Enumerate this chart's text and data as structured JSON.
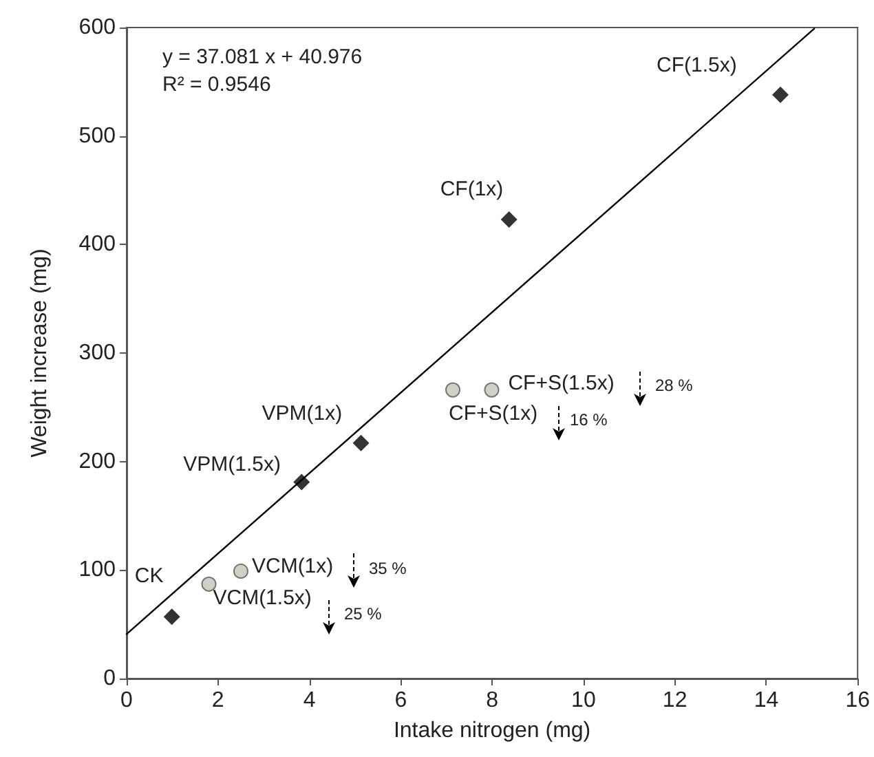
{
  "chart_data": {
    "type": "scatter",
    "xlabel": "Intake nitrogen (mg)",
    "ylabel": "Weight increase (mg)",
    "xlim": [
      0,
      16
    ],
    "xticks": [
      0,
      2,
      4,
      6,
      8,
      10,
      12,
      14,
      16
    ],
    "ylim": [
      0,
      600
    ],
    "yticks": [
      0,
      100,
      200,
      300,
      400,
      500,
      600
    ],
    "series": [
      {
        "color": "#000000",
        "marker": "diamond",
        "x": [
          0.99,
          3.83,
          5.13,
          8.37,
          14.31
        ],
        "values": [
          57,
          181,
          217,
          423,
          538
        ]
      },
      {
        "color": "#c4c4b8",
        "marker": "circle",
        "x": [
          1.8,
          2.5,
          7.14,
          7.99
        ],
        "values": [
          87,
          99,
          266,
          266
        ]
      },
      {
        "type": "line",
        "color": "#000000",
        "marker": "none",
        "line_style": "solid",
        "x": [
          0,
          15.05
        ],
        "values": [
          41,
          599
        ]
      }
    ],
    "annotations": [
      "y = 37.081 x + 40.976",
      "R² = 0.9546",
      {
        "text": "CK",
        "x": 0.99,
        "y": 57
      },
      {
        "text": "VCM(1.5x)",
        "x": 1.8,
        "y": 87
      },
      {
        "text": "VCM(1x)",
        "x": 2.5,
        "y": 99
      },
      {
        "text": "VPM(1.5x)",
        "x": 3.83,
        "y": 181
      },
      {
        "text": "VPM(1x)",
        "x": 5.13,
        "y": 217
      },
      {
        "text": "CF+S(1x)",
        "x": 7.14,
        "y": 266
      },
      {
        "text": "CF+S(1.5x)",
        "x": 7.99,
        "y": 266
      },
      {
        "text": "CF(1x)",
        "x": 8.37,
        "y": 423
      },
      {
        "text": "CF(1.5x)",
        "x": 14.31,
        "y": 538
      },
      "35 %",
      "25 %",
      "16 %",
      "28 %"
    ]
  }
}
